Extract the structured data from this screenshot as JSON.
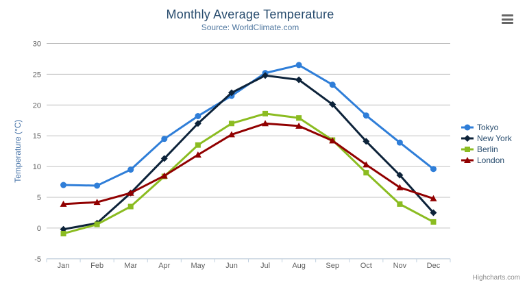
{
  "header": {
    "title": "Monthly Average Temperature",
    "subtitle": "Source: WorldClimate.com"
  },
  "credit_label": "Highcharts.com",
  "menu_icon": "hamburger-icon",
  "palette": {
    "title_color": "#274b6d",
    "subtitle_color": "#4d759e",
    "axis_title_color": "#4572a7",
    "tick_label_color": "#606060",
    "gridline_color": "#c0c0c0",
    "axis_line_color": "#c0d0e0",
    "legend_text_color": "#274b6d",
    "credit_color": "#909090"
  },
  "chart_data": {
    "type": "line",
    "title": "Monthly Average Temperature",
    "subtitle": "Source: WorldClimate.com",
    "xlabel": "",
    "ylabel": "Temperature (°C)",
    "ylim": [
      -5,
      30
    ],
    "ytick_step": 5,
    "grid": true,
    "legend_position": "right",
    "categories": [
      "Jan",
      "Feb",
      "Mar",
      "Apr",
      "May",
      "Jun",
      "Jul",
      "Aug",
      "Sep",
      "Oct",
      "Nov",
      "Dec"
    ],
    "series": [
      {
        "name": "Tokyo",
        "color": "#2f7ed8",
        "marker": "circle",
        "values": [
          7.0,
          6.9,
          9.5,
          14.5,
          18.2,
          21.5,
          25.2,
          26.5,
          23.3,
          18.3,
          13.9,
          9.6
        ]
      },
      {
        "name": "New York",
        "color": "#0d233a",
        "marker": "diamond",
        "values": [
          -0.2,
          0.8,
          5.7,
          11.3,
          17.0,
          22.0,
          24.8,
          24.1,
          20.1,
          14.1,
          8.6,
          2.5
        ]
      },
      {
        "name": "Berlin",
        "color": "#8bbc21",
        "marker": "square",
        "values": [
          -0.9,
          0.6,
          3.5,
          8.4,
          13.5,
          17.0,
          18.6,
          17.9,
          14.3,
          9.0,
          3.9,
          1.0
        ]
      },
      {
        "name": "London",
        "color": "#910000",
        "marker": "triangle",
        "values": [
          3.9,
          4.2,
          5.7,
          8.5,
          11.9,
          15.2,
          17.0,
          16.6,
          14.2,
          10.3,
          6.6,
          4.8
        ]
      }
    ]
  }
}
